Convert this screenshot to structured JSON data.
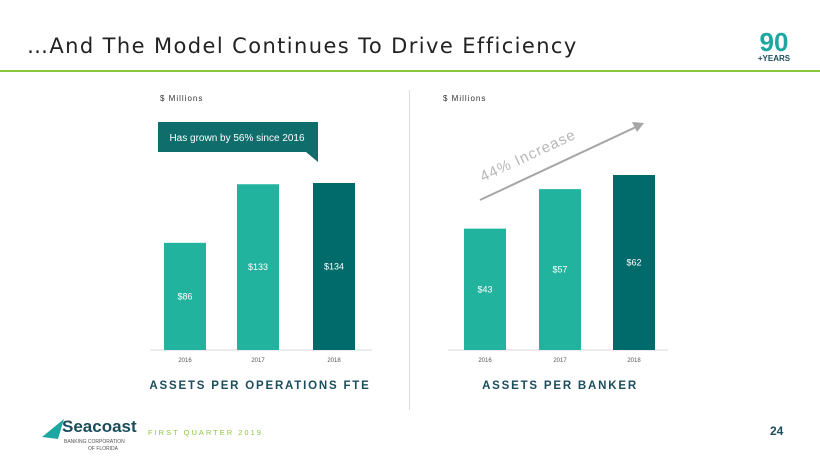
{
  "title": "…And The Model Continues To Drive Efficiency",
  "logo_text": "90 +YEARS",
  "footer": {
    "quarter": "FIRST QUARTER 2019",
    "page": "24",
    "brand": "Seacoast",
    "brand_sub1": "BANKING CORPORATION",
    "brand_sub2": "OF FLORIDA"
  },
  "colors": {
    "light": "#21b39d",
    "dark": "#006b6a",
    "accent": "#8cc63f"
  },
  "callout": "Has grown by 56% since 2016",
  "annotation": "44% Increase",
  "chart_data": [
    {
      "type": "bar",
      "title": "ASSETS PER OPERATIONS FTE",
      "ylabel": "$ Millions",
      "categories": [
        "2016",
        "2017",
        "2018"
      ],
      "values": [
        86,
        133,
        134
      ],
      "labels": [
        "$86",
        "$133",
        "$134"
      ],
      "ylim": [
        0,
        140
      ]
    },
    {
      "type": "bar",
      "title": "ASSETS PER BANKER",
      "ylabel": "$ Millions",
      "categories": [
        "2016",
        "2017",
        "2018"
      ],
      "values": [
        43,
        57,
        62
      ],
      "labels": [
        "$43",
        "$57",
        "$62"
      ],
      "ylim": [
        0,
        64
      ]
    }
  ]
}
